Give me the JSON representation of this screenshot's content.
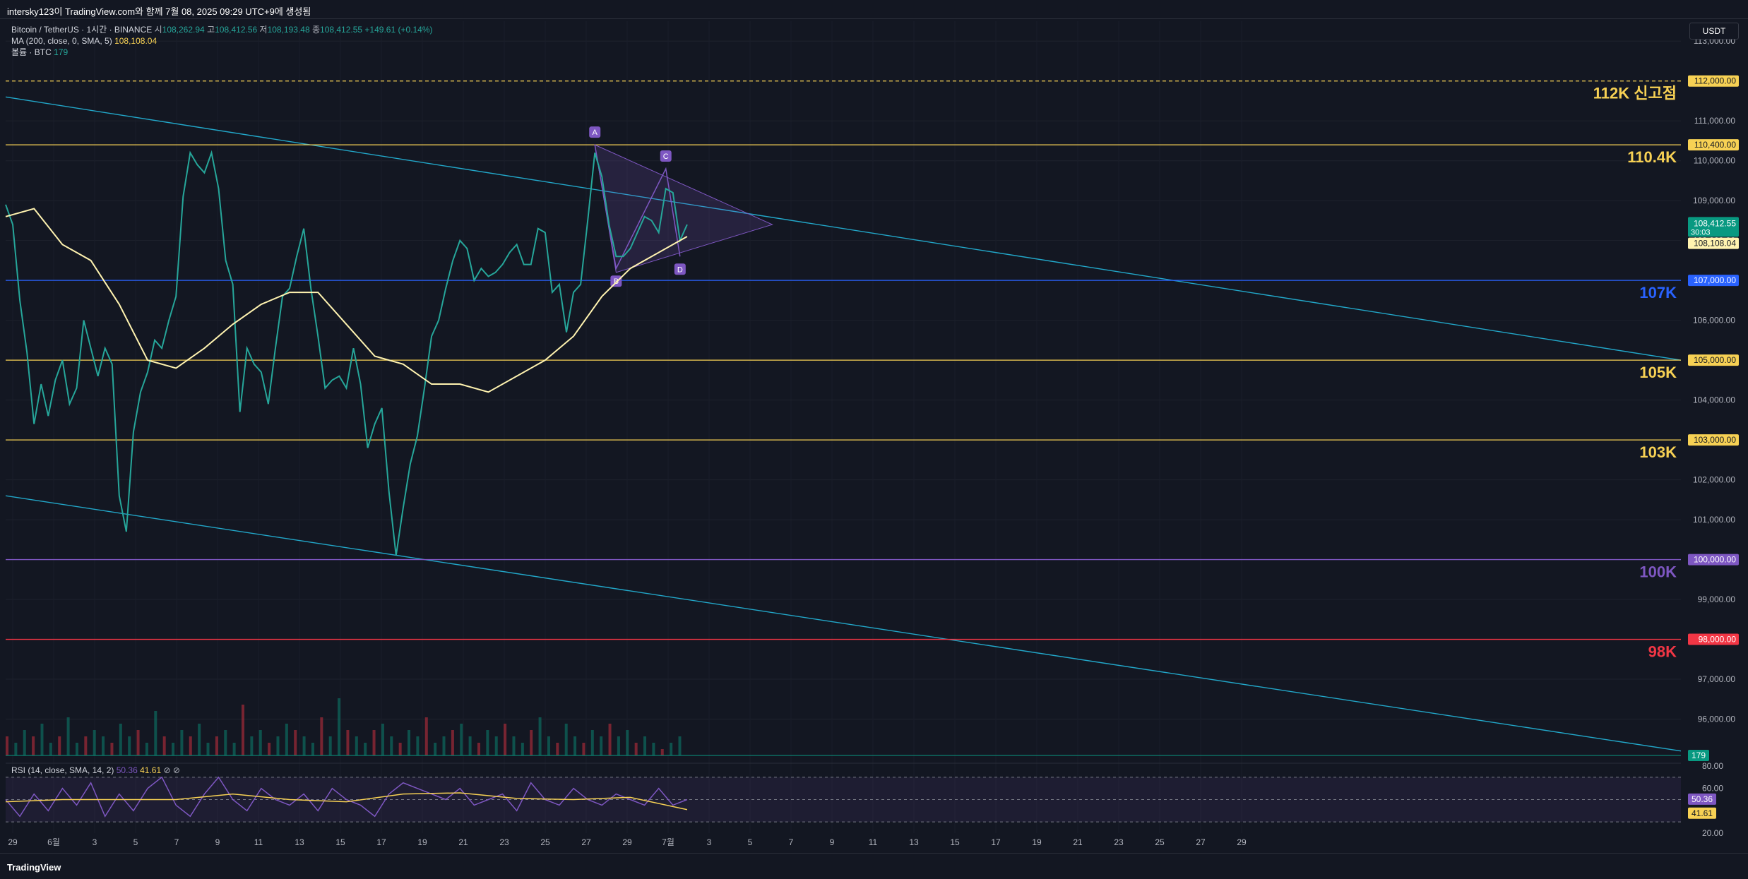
{
  "header": {
    "title": "intersky123이 TradingView.com와 함께 7월 08, 2025 09:29 UTC+9에 생성됨"
  },
  "legend": {
    "symbol": "Bitcoin / TetherUS · 1시간 · BINANCE",
    "open_label": "시",
    "open": "108,262.94",
    "high_label": "고",
    "high": "108,412.56",
    "low_label": "저",
    "low": "108,193.48",
    "close_label": "종",
    "close": "108,412.55",
    "change": "+149.61 (+0.14%)",
    "ma_label": "MA (200, close, 0, SMA, 5)",
    "ma_value": "108,108.04",
    "volume_label": "볼륨 · BTC",
    "volume_value": "179"
  },
  "currency_button": "USDT",
  "footer": {
    "brand": "TradingView"
  },
  "rsi": {
    "label": "RSI (14, close, SMA, 14, 2)",
    "value": "50.36",
    "ma_value": "41.61"
  },
  "chart_data": {
    "type": "line",
    "price_axis": {
      "ticks": [
        "113,000.00",
        "112,000.00",
        "111,000.00",
        "110,000.00",
        "109,000.00",
        "108,000.00",
        "107,000.00",
        "106,000.00",
        "105,000.00",
        "104,000.00",
        "103,000.00",
        "102,000.00",
        "101,000.00",
        "100,000.00",
        "99,000.00",
        "98,000.00",
        "97,000.00",
        "96,000.00"
      ],
      "range": [
        95000,
        113500
      ]
    },
    "time_axis": {
      "labels": [
        "29",
        "6월",
        "3",
        "5",
        "7",
        "9",
        "11",
        "13",
        "15",
        "17",
        "19",
        "21",
        "23",
        "25",
        "27",
        "29",
        "7월",
        "3",
        "5",
        "7",
        "9",
        "11",
        "13",
        "15",
        "17",
        "19",
        "21",
        "23",
        "25",
        "27",
        "29"
      ]
    },
    "price_tags": [
      {
        "price": 112000,
        "text": "112,000.00",
        "color": "#f7d154",
        "dashed": true
      },
      {
        "price": 110400,
        "text": "110,400.00",
        "color": "#f7d154"
      },
      {
        "price": 107000,
        "text": "107,000.00",
        "color": "#2962ff"
      },
      {
        "price": 105000,
        "text": "105,000.00",
        "color": "#f7d154"
      },
      {
        "price": 103000,
        "text": "103,000.00",
        "color": "#f7d154"
      },
      {
        "price": 100000,
        "text": "100,000.00",
        "color": "#7e57c2"
      },
      {
        "price": 98000,
        "text": "98,000.00",
        "color": "#f23645"
      }
    ],
    "current_price": {
      "price": 108412.55,
      "text": "108,412.55",
      "countdown": "30:03",
      "color": "#089981"
    },
    "ma_tag": {
      "price": 108108.04,
      "text": "108,108.04",
      "color": "#f7d154"
    },
    "volume_tag": {
      "text": "179",
      "color": "#089981"
    },
    "level_labels": [
      {
        "price": 112000,
        "text": "112K 신고점",
        "color": "#f7d154"
      },
      {
        "price": 110400,
        "text": "110.4K",
        "color": "#f7d154"
      },
      {
        "price": 107000,
        "text": "107K",
        "color": "#2962ff"
      },
      {
        "price": 105000,
        "text": "105K",
        "color": "#f7d154"
      },
      {
        "price": 103000,
        "text": "103K",
        "color": "#f7d154"
      },
      {
        "price": 100000,
        "text": "100K",
        "color": "#7e57c2"
      },
      {
        "price": 98000,
        "text": "98K",
        "color": "#f23645"
      }
    ],
    "price_path": [
      [
        0,
        108900
      ],
      [
        5,
        108400
      ],
      [
        10,
        106500
      ],
      [
        15,
        105200
      ],
      [
        20,
        103400
      ],
      [
        25,
        104400
      ],
      [
        30,
        103600
      ],
      [
        35,
        104500
      ],
      [
        40,
        105000
      ],
      [
        45,
        103900
      ],
      [
        50,
        104300
      ],
      [
        55,
        106000
      ],
      [
        60,
        105300
      ],
      [
        65,
        104600
      ],
      [
        70,
        105300
      ],
      [
        75,
        104900
      ],
      [
        80,
        101600
      ],
      [
        85,
        100700
      ],
      [
        90,
        103200
      ],
      [
        95,
        104200
      ],
      [
        100,
        104700
      ],
      [
        105,
        105500
      ],
      [
        110,
        105300
      ],
      [
        115,
        106000
      ],
      [
        120,
        106600
      ],
      [
        125,
        109100
      ],
      [
        130,
        110200
      ],
      [
        135,
        109900
      ],
      [
        140,
        109700
      ],
      [
        145,
        110200
      ],
      [
        150,
        109300
      ],
      [
        155,
        107500
      ],
      [
        160,
        106900
      ],
      [
        165,
        103700
      ],
      [
        170,
        105300
      ],
      [
        175,
        104900
      ],
      [
        180,
        104700
      ],
      [
        185,
        103900
      ],
      [
        190,
        105300
      ],
      [
        195,
        106600
      ],
      [
        200,
        106800
      ],
      [
        205,
        107600
      ],
      [
        210,
        108300
      ],
      [
        215,
        106800
      ],
      [
        220,
        105600
      ],
      [
        225,
        104300
      ],
      [
        230,
        104500
      ],
      [
        235,
        104600
      ],
      [
        240,
        104300
      ],
      [
        245,
        105300
      ],
      [
        250,
        104400
      ],
      [
        255,
        102800
      ],
      [
        260,
        103400
      ],
      [
        265,
        103800
      ],
      [
        270,
        101700
      ],
      [
        275,
        100100
      ],
      [
        280,
        101300
      ],
      [
        285,
        102400
      ],
      [
        290,
        103100
      ],
      [
        295,
        104300
      ],
      [
        300,
        105600
      ],
      [
        305,
        106000
      ],
      [
        310,
        106800
      ],
      [
        315,
        107500
      ],
      [
        320,
        108000
      ],
      [
        325,
        107800
      ],
      [
        330,
        107000
      ],
      [
        335,
        107300
      ],
      [
        340,
        107100
      ],
      [
        345,
        107200
      ],
      [
        350,
        107400
      ],
      [
        355,
        107700
      ],
      [
        360,
        107900
      ],
      [
        365,
        107400
      ],
      [
        370,
        107400
      ],
      [
        375,
        108300
      ],
      [
        380,
        108200
      ],
      [
        385,
        106700
      ],
      [
        390,
        106900
      ],
      [
        395,
        105700
      ],
      [
        400,
        106700
      ],
      [
        405,
        106900
      ],
      [
        410,
        108500
      ],
      [
        415,
        110200
      ],
      [
        420,
        109600
      ],
      [
        425,
        108400
      ],
      [
        430,
        107600
      ],
      [
        435,
        107600
      ],
      [
        440,
        107800
      ],
      [
        445,
        108200
      ],
      [
        450,
        108600
      ],
      [
        455,
        108500
      ],
      [
        460,
        108200
      ],
      [
        465,
        109300
      ],
      [
        470,
        109200
      ],
      [
        475,
        108000
      ],
      [
        480,
        108400
      ]
    ],
    "ma200_path": [
      [
        0,
        108600
      ],
      [
        20,
        108800
      ],
      [
        40,
        107900
      ],
      [
        60,
        107500
      ],
      [
        80,
        106400
      ],
      [
        100,
        105000
      ],
      [
        120,
        104800
      ],
      [
        140,
        105300
      ],
      [
        160,
        105900
      ],
      [
        180,
        106400
      ],
      [
        200,
        106700
      ],
      [
        220,
        106700
      ],
      [
        240,
        105900
      ],
      [
        260,
        105100
      ],
      [
        280,
        104900
      ],
      [
        300,
        104400
      ],
      [
        320,
        104400
      ],
      [
        340,
        104200
      ],
      [
        360,
        104600
      ],
      [
        380,
        105000
      ],
      [
        400,
        105600
      ],
      [
        420,
        106600
      ],
      [
        440,
        107300
      ],
      [
        460,
        107700
      ],
      [
        480,
        108100
      ]
    ],
    "volume": [
      3,
      2,
      4,
      3,
      5,
      2,
      3,
      6,
      2,
      3,
      4,
      3,
      2,
      5,
      3,
      4,
      2,
      7,
      3,
      2,
      4,
      3,
      5,
      2,
      3,
      4,
      2,
      8,
      3,
      4,
      2,
      3,
      5,
      4,
      3,
      2,
      6,
      3,
      9,
      4,
      3,
      2,
      4,
      5,
      3,
      2,
      4,
      3,
      6,
      2,
      3,
      4,
      5,
      3,
      2,
      4,
      3,
      5,
      3,
      2,
      4,
      6,
      3,
      2,
      5,
      3,
      2,
      4,
      3,
      5,
      3,
      4,
      2,
      3,
      2,
      1,
      2,
      3
    ],
    "rsi_range": [
      20,
      80
    ],
    "rsi_levels": [
      70,
      50,
      30
    ],
    "rsi_path": [
      [
        0,
        50
      ],
      [
        10,
        35
      ],
      [
        20,
        55
      ],
      [
        30,
        40
      ],
      [
        40,
        60
      ],
      [
        50,
        45
      ],
      [
        60,
        65
      ],
      [
        70,
        35
      ],
      [
        80,
        55
      ],
      [
        90,
        40
      ],
      [
        100,
        60
      ],
      [
        110,
        70
      ],
      [
        120,
        45
      ],
      [
        130,
        35
      ],
      [
        140,
        55
      ],
      [
        150,
        70
      ],
      [
        160,
        50
      ],
      [
        170,
        40
      ],
      [
        180,
        60
      ],
      [
        190,
        50
      ],
      [
        200,
        45
      ],
      [
        210,
        55
      ],
      [
        220,
        40
      ],
      [
        230,
        60
      ],
      [
        240,
        50
      ],
      [
        250,
        45
      ],
      [
        260,
        35
      ],
      [
        270,
        55
      ],
      [
        280,
        65
      ],
      [
        290,
        60
      ],
      [
        300,
        55
      ],
      [
        310,
        50
      ],
      [
        320,
        60
      ],
      [
        330,
        45
      ],
      [
        340,
        50
      ],
      [
        350,
        55
      ],
      [
        360,
        40
      ],
      [
        370,
        65
      ],
      [
        380,
        50
      ],
      [
        390,
        45
      ],
      [
        400,
        60
      ],
      [
        410,
        50
      ],
      [
        420,
        45
      ],
      [
        430,
        55
      ],
      [
        440,
        50
      ],
      [
        450,
        45
      ],
      [
        460,
        60
      ],
      [
        470,
        45
      ],
      [
        480,
        50
      ]
    ],
    "rsi_ma_path": [
      [
        0,
        48
      ],
      [
        40,
        50
      ],
      [
        80,
        50
      ],
      [
        120,
        50
      ],
      [
        160,
        55
      ],
      [
        200,
        50
      ],
      [
        240,
        48
      ],
      [
        280,
        55
      ],
      [
        320,
        56
      ],
      [
        360,
        51
      ],
      [
        400,
        50
      ],
      [
        440,
        52
      ],
      [
        480,
        41
      ]
    ],
    "pattern_labels": [
      "A",
      "B",
      "C",
      "D"
    ]
  }
}
